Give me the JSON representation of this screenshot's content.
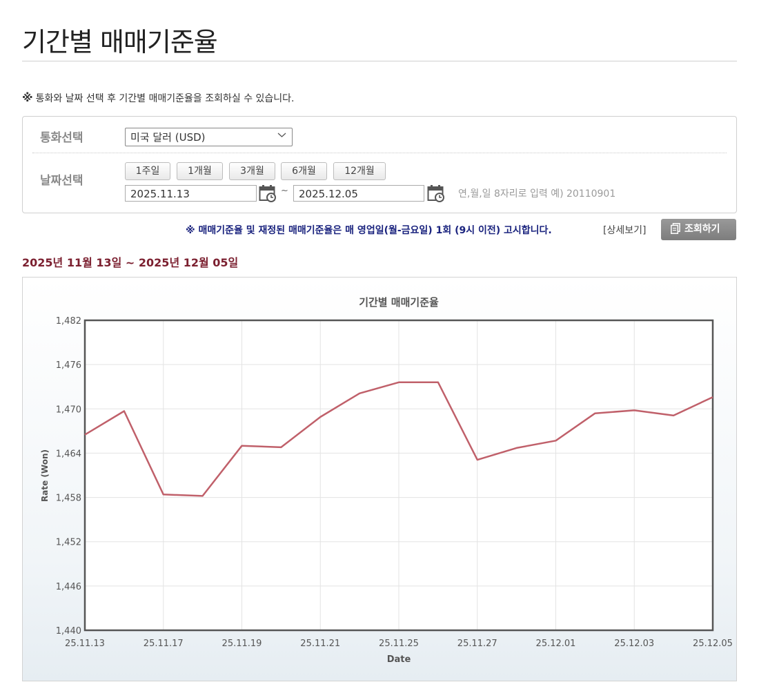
{
  "page": {
    "title": "기간별 매매기준율"
  },
  "notice": {
    "mark": "※",
    "text": "통화와 날짜 선택 후 기간별 매매기준율을 조회하실 수 있습니다."
  },
  "filter": {
    "currency_label": "통화선택",
    "currency_value": "미국 달러 (USD)",
    "date_label": "날짜선택",
    "periods": [
      "1주일",
      "1개월",
      "3개월",
      "6개월",
      "12개월"
    ],
    "start_date": "2025.11.13",
    "end_date": "2025.12.05",
    "separator": "~",
    "hint": "연,월,일 8자리로 입력 예) 20110901"
  },
  "notice2": "※ 매매기준율 및 재정된 매매기준율은 매 영업일(월-금요일) 1회 (9시 이전) 고시합니다.",
  "detail_link": "[상세보기]",
  "search_button": "조회하기",
  "range_text": "2025년 11월 13일 ~ 2025년 12월 05일",
  "colors": {
    "line": "#c0606a",
    "title": "#222222",
    "notice2": "#1a237e",
    "range": "#7b1f2f"
  },
  "chart_data": {
    "type": "line",
    "title": "기간별 매매기준율",
    "xlabel": "Date",
    "ylabel": "Rate (Won)",
    "ylim": [
      1440,
      1482
    ],
    "yticks": [
      "1,440",
      "1,446",
      "1,452",
      "1,458",
      "1,464",
      "1,470",
      "1,476",
      "1,482"
    ],
    "xtick_labels": [
      "25.11.13",
      "25.11.17",
      "25.11.19",
      "25.11.21",
      "25.11.25",
      "25.11.27",
      "25.12.01",
      "25.12.03",
      "25.12.05"
    ],
    "grid": true,
    "legend": "none",
    "x": [
      "25.11.13",
      "25.11.14",
      "25.11.17",
      "25.11.18",
      "25.11.19",
      "25.11.20",
      "25.11.21",
      "25.11.24",
      "25.11.25",
      "25.11.26",
      "25.11.27",
      "25.11.28",
      "25.12.01",
      "25.12.02",
      "25.12.03",
      "25.12.04",
      "25.12.05"
    ],
    "values": [
      1466.5,
      1469.7,
      1458.4,
      1458.2,
      1465.0,
      1464.8,
      1468.9,
      1472.1,
      1473.6,
      1473.6,
      1463.1,
      1464.7,
      1465.7,
      1469.4,
      1469.8,
      1469.1,
      1471.6
    ]
  }
}
